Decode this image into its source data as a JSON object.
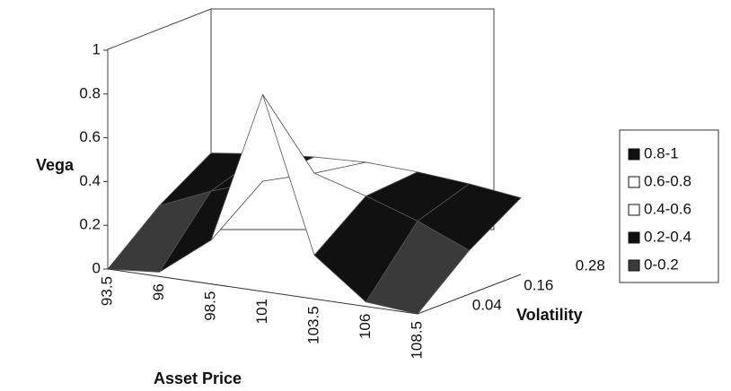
{
  "chart_data": {
    "type": "surface",
    "z_label": "Vega",
    "x_label": "Asset Price",
    "depth_label": "Volatility",
    "categories": [
      "93.5",
      "96",
      "98.5",
      "101",
      "103.5",
      "106",
      "108.5"
    ],
    "depth_categories": [
      "0.04",
      "0.16",
      "0.28"
    ],
    "values": [
      [
        0,
        0.02,
        0.2,
        0.9,
        0.2,
        0.02,
        0
      ],
      [
        0.2,
        0.3,
        0.38,
        0.45,
        0.38,
        0.3,
        0.2
      ],
      [
        0.35,
        0.38,
        0.4,
        0.41,
        0.4,
        0.38,
        0.35
      ]
    ],
    "zlim": [
      0,
      1
    ],
    "zticks": [
      0,
      0.2,
      0.4,
      0.6,
      0.8,
      1
    ],
    "bands": [
      {
        "label": "0.8-1",
        "color": "#111111"
      },
      {
        "label": "0.6-0.8",
        "color": "#ffffff"
      },
      {
        "label": "0.4-0.6",
        "color": "#ffffff"
      },
      {
        "label": "0.2-0.4",
        "color": "#111111"
      },
      {
        "label": "0-0.2",
        "color": "#3a3a3a"
      }
    ]
  }
}
